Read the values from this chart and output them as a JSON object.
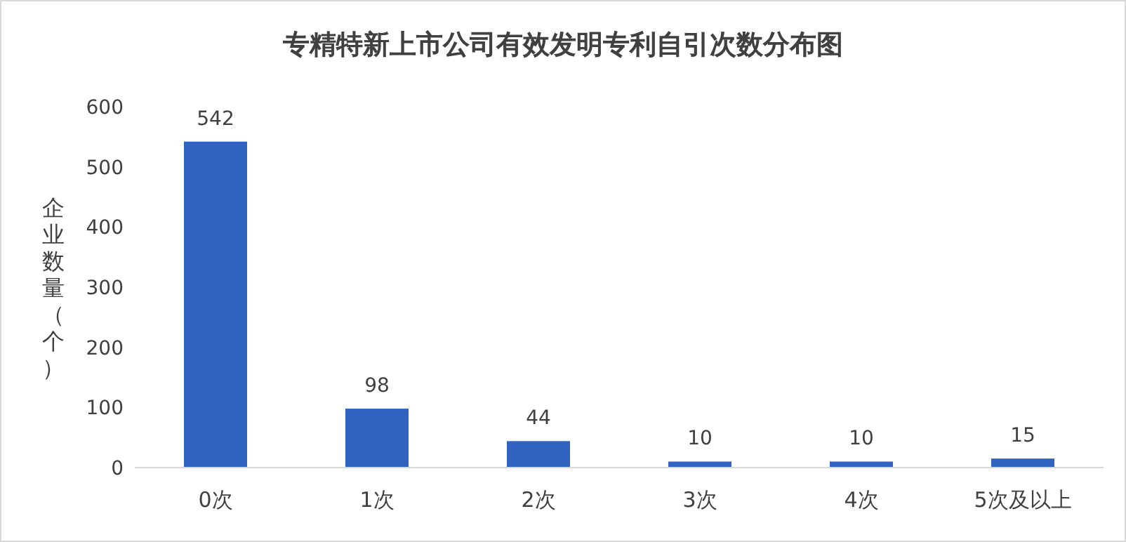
{
  "chart_data": {
    "type": "bar",
    "title": "专精特新上市公司有效发明专利自引次数分布图",
    "ylabel": "企业数量（个）",
    "categories": [
      "0次",
      "1次",
      "2次",
      "3次",
      "4次",
      "5次及以上"
    ],
    "values": [
      542,
      98,
      44,
      10,
      10,
      15
    ],
    "color": "#3062c0",
    "ylim": [
      0,
      600
    ],
    "yticks": [
      0,
      100,
      200,
      300,
      400,
      500,
      600
    ],
    "data_labels": true
  }
}
